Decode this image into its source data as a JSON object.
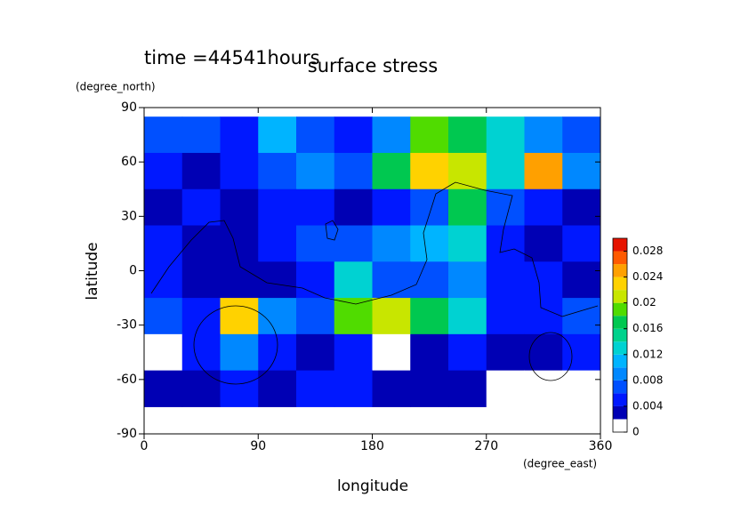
{
  "chart_data": {
    "type": "contour",
    "title": "surface stress",
    "subtitle": "time =44541hours",
    "x_label": "longitude",
    "y_label": "latitude",
    "x_unit": "(degree_east)",
    "y_unit": "(degree_north)",
    "xlim": [
      0,
      360
    ],
    "ylim": [
      -90,
      90
    ],
    "xticks": [
      0,
      90,
      180,
      270,
      360
    ],
    "yticks": [
      -90,
      -60,
      -30,
      0,
      30,
      60,
      90
    ],
    "x": [
      15,
      45,
      75,
      105,
      135,
      165,
      195,
      225,
      255,
      285,
      315,
      345
    ],
    "y": [
      75,
      55,
      35,
      15,
      -5,
      -25,
      -45,
      -65
    ],
    "z": [
      [
        0.006,
        0.006,
        0.005,
        0.01,
        0.006,
        0.004,
        0.008,
        0.018,
        0.016,
        0.012,
        0.008,
        0.006
      ],
      [
        0.004,
        0.003,
        0.004,
        0.006,
        0.008,
        0.006,
        0.016,
        0.022,
        0.02,
        0.012,
        0.024,
        0.008
      ],
      [
        0.002,
        0.004,
        0.003,
        0.004,
        0.005,
        0.003,
        0.004,
        0.006,
        0.016,
        0.006,
        0.004,
        0.003
      ],
      [
        0.004,
        0.003,
        0.002,
        0.004,
        0.006,
        0.006,
        0.008,
        0.01,
        0.012,
        0.004,
        0.003,
        0.004
      ],
      [
        0.004,
        0.003,
        0.003,
        0.002,
        0.004,
        0.012,
        0.006,
        0.006,
        0.008,
        0.004,
        0.004,
        0.003
      ],
      [
        0.006,
        0.004,
        0.022,
        0.008,
        0.006,
        0.018,
        0.02,
        0.016,
        0.012,
        0.004,
        0.004,
        0.006
      ],
      [
        0.001,
        0.004,
        0.008,
        0.004,
        0.002,
        0.004,
        0.001,
        0.003,
        0.004,
        0.003,
        0.002,
        0.004
      ],
      [
        0.002,
        0.003,
        0.004,
        0.003,
        0.004,
        0.004,
        0.003,
        0.002,
        0.002,
        0.001,
        0.001,
        0.001
      ]
    ],
    "colorbar": {
      "levels": [
        0,
        0.002,
        0.004,
        0.006,
        0.008,
        0.01,
        0.012,
        0.014,
        0.016,
        0.018,
        0.02,
        0.022,
        0.024,
        0.026,
        0.028,
        0.03
      ],
      "colors": [
        "#ffffff",
        "#0000b4",
        "#0018ff",
        "#0050ff",
        "#0088ff",
        "#00b4ff",
        "#00d2d2",
        "#00d28c",
        "#00c850",
        "#50dc00",
        "#c8e600",
        "#ffd200",
        "#ffa000",
        "#ff5a00",
        "#e61400"
      ],
      "ticks": [
        0,
        0.004,
        0.008,
        0.012,
        0.016,
        0.02,
        0.024,
        0.028
      ]
    }
  }
}
